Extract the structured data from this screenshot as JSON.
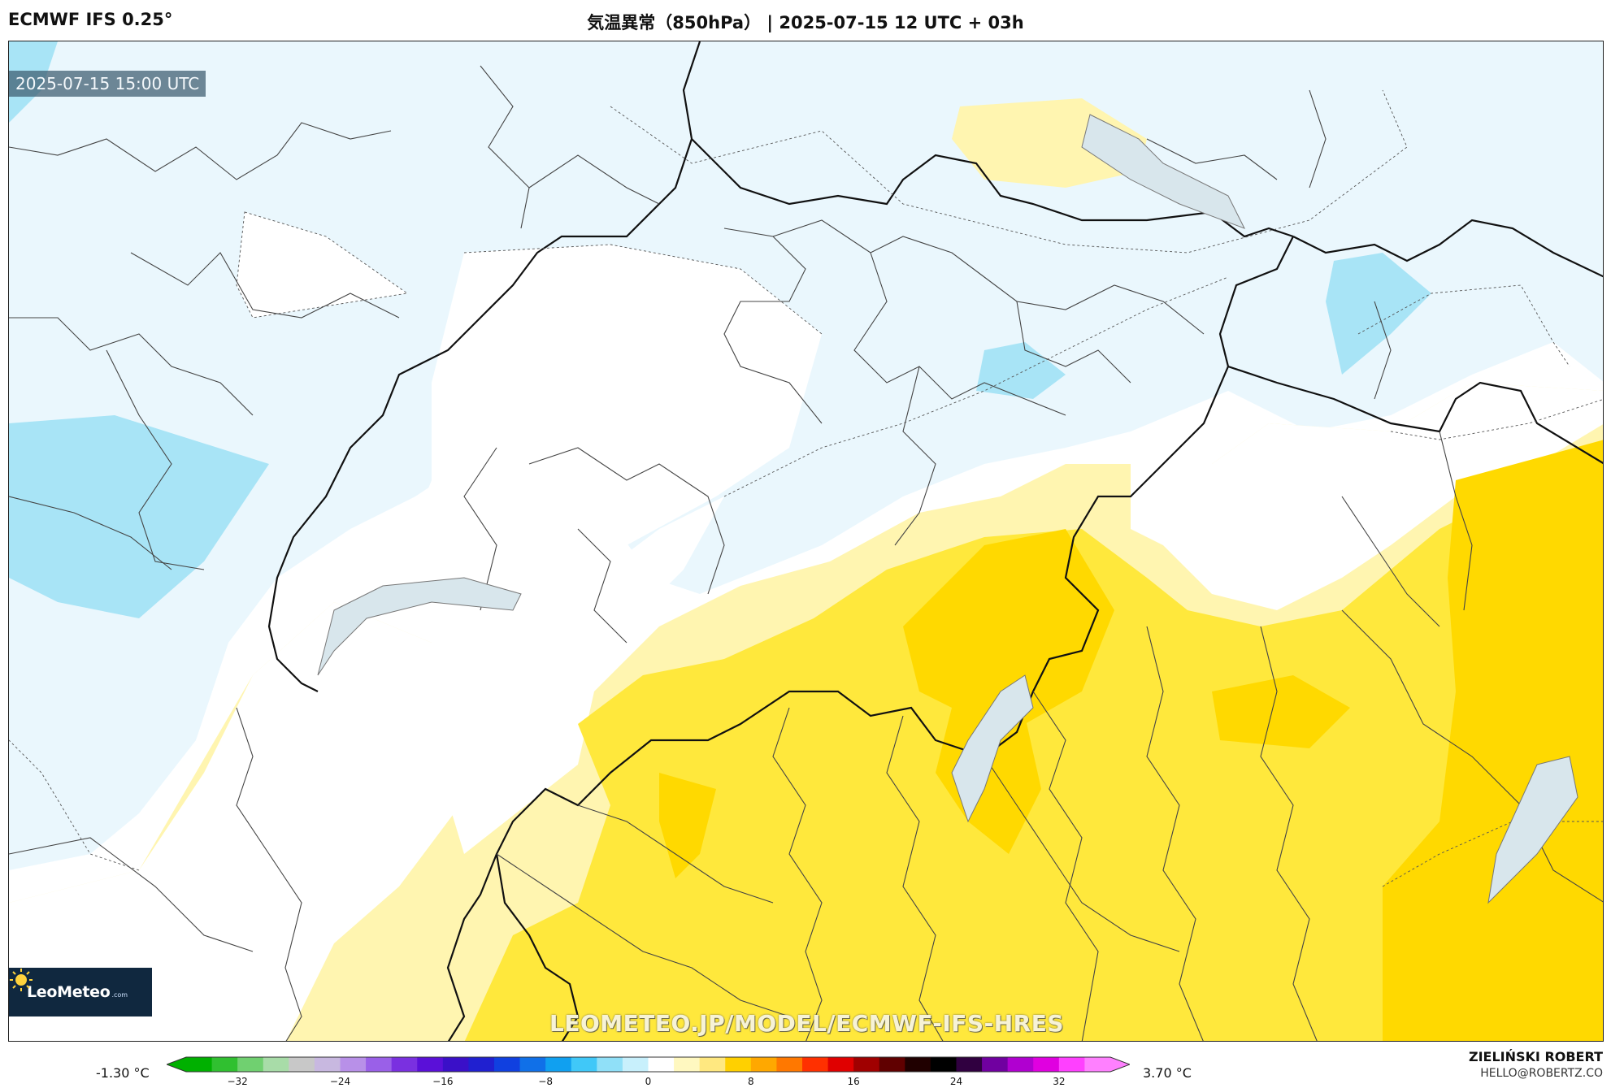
{
  "header": {
    "model": "ECMWF IFS 0.25°",
    "title": "気温異常（850hPa） | 2025-07-15 12 UTC + 03h"
  },
  "map": {
    "valid_time": "2025-07-15 15:00 UTC",
    "watermark": "LEOMETEO.JP/MODEL/ECMWF-IFS-HRES",
    "logo": {
      "name": "LeoMeteo",
      "suffix": ".com"
    }
  },
  "colorbar": {
    "min_label": "-1.30 °C",
    "max_label": "3.70 °C",
    "ticks": [
      "−32",
      "−24",
      "−16",
      "−8",
      "0",
      "8",
      "16",
      "24",
      "32"
    ],
    "range": [
      -36,
      36
    ],
    "colors": [
      "#00b000",
      "#30c030",
      "#70d070",
      "#a8dca8",
      "#c8c8c8",
      "#c8b8e0",
      "#b890e8",
      "#9a60e8",
      "#7a30e0",
      "#5a10d8",
      "#3a10c8",
      "#2020d0",
      "#1040e0",
      "#1070e8",
      "#10a0f0",
      "#40c8f8",
      "#90e0f8",
      "#c8f0fc",
      "#ffffff",
      "#fff8c0",
      "#ffe880",
      "#ffd000",
      "#ffa800",
      "#ff7800",
      "#ff3000",
      "#e00000",
      "#a00000",
      "#600000",
      "#200000",
      "#000000",
      "#300040",
      "#7000a0",
      "#b000d0",
      "#e000e0",
      "#ff40ff",
      "#ff80ff"
    ]
  },
  "credit": {
    "name": "ZIELIŃSKI ROBERT",
    "email": "HELLO@ROBERTZ.CO"
  },
  "colors": {
    "anom_neg_light": "#eaf7fd",
    "anom_neg_mid": "#a8e4f6",
    "anom_pos_light": "#fff5b0",
    "anom_pos_mid": "#ffe83c",
    "anom_pos_strong": "#ffd900"
  }
}
